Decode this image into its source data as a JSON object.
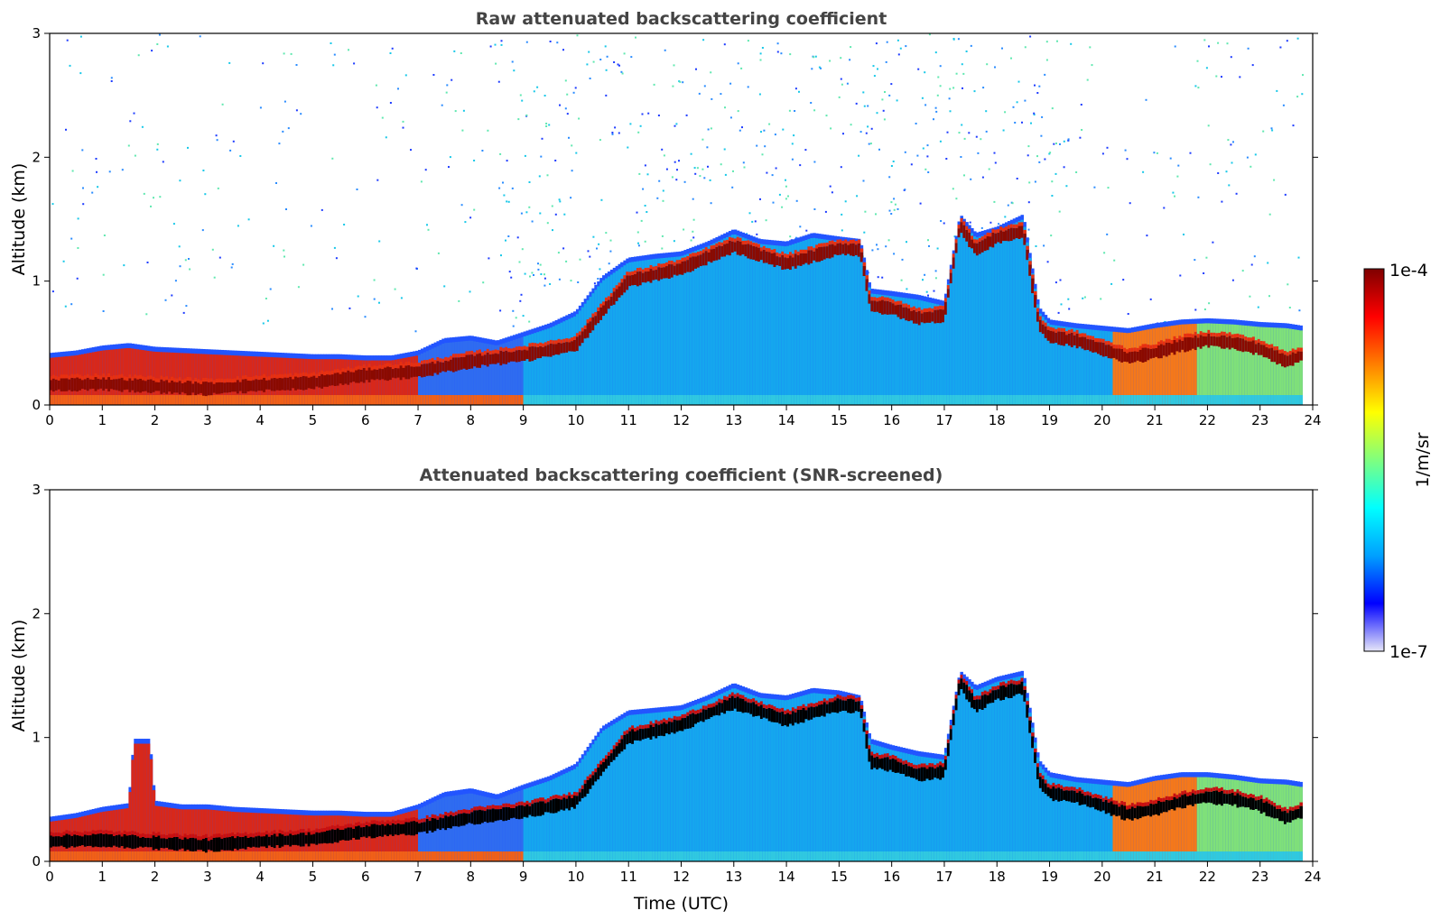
{
  "chart_data": [
    {
      "type": "heatmap",
      "title": "Raw attenuated backscattering coefficient",
      "xlabel": "",
      "ylabel": "Altitude (km)",
      "xlim": [
        0,
        24
      ],
      "ylim": [
        0,
        3
      ],
      "x_ticks": [
        "0",
        "1",
        "2",
        "3",
        "4",
        "5",
        "6",
        "7",
        "8",
        "9",
        "10",
        "11",
        "12",
        "13",
        "14",
        "15",
        "16",
        "17",
        "18",
        "19",
        "20",
        "21",
        "22",
        "23",
        "24"
      ],
      "y_ticks": [
        "0",
        "1",
        "2",
        "3"
      ],
      "screened": false,
      "layer_top_km": [
        [
          0,
          0.38
        ],
        [
          0.5,
          0.4
        ],
        [
          1,
          0.44
        ],
        [
          1.5,
          0.46
        ],
        [
          2,
          0.43
        ],
        [
          2.5,
          0.42
        ],
        [
          3,
          0.41
        ],
        [
          3.5,
          0.4
        ],
        [
          4,
          0.39
        ],
        [
          4.5,
          0.38
        ],
        [
          5,
          0.37
        ],
        [
          5.5,
          0.37
        ],
        [
          6,
          0.36
        ],
        [
          6.5,
          0.36
        ],
        [
          7,
          0.4
        ],
        [
          7.5,
          0.5
        ],
        [
          8,
          0.52
        ],
        [
          8.5,
          0.48
        ],
        [
          9,
          0.55
        ],
        [
          9.5,
          0.62
        ],
        [
          10,
          0.72
        ],
        [
          10.5,
          1.0
        ],
        [
          11,
          1.15
        ],
        [
          11.5,
          1.18
        ],
        [
          12,
          1.2
        ],
        [
          12.5,
          1.28
        ],
        [
          13,
          1.38
        ],
        [
          13.5,
          1.3
        ],
        [
          14,
          1.28
        ],
        [
          14.5,
          1.35
        ],
        [
          15,
          1.32
        ],
        [
          15.4,
          1.3
        ],
        [
          15.6,
          0.9
        ],
        [
          16,
          0.88
        ],
        [
          16.5,
          0.85
        ],
        [
          17,
          0.8
        ],
        [
          17.3,
          1.5
        ],
        [
          17.6,
          1.35
        ],
        [
          18,
          1.4
        ],
        [
          18.5,
          1.5
        ],
        [
          18.8,
          0.75
        ],
        [
          19,
          0.65
        ],
        [
          19.5,
          0.62
        ],
        [
          20,
          0.6
        ],
        [
          20.5,
          0.58
        ],
        [
          21,
          0.62
        ],
        [
          21.5,
          0.65
        ],
        [
          22,
          0.66
        ],
        [
          22.5,
          0.65
        ],
        [
          23,
          0.63
        ],
        [
          23.5,
          0.62
        ],
        [
          23.8,
          0.6
        ]
      ],
      "cloud_base_km": [
        [
          0,
          0.16
        ],
        [
          1,
          0.17
        ],
        [
          2,
          0.15
        ],
        [
          3,
          0.13
        ],
        [
          4,
          0.16
        ],
        [
          5,
          0.18
        ],
        [
          6,
          0.24
        ],
        [
          7,
          0.27
        ],
        [
          8,
          0.35
        ],
        [
          9,
          0.4
        ],
        [
          10,
          0.48
        ],
        [
          10.5,
          0.75
        ],
        [
          11,
          1.0
        ],
        [
          12,
          1.1
        ],
        [
          13,
          1.28
        ],
        [
          14,
          1.14
        ],
        [
          15,
          1.26
        ],
        [
          15.4,
          1.25
        ],
        [
          15.6,
          0.8
        ],
        [
          16,
          0.78
        ],
        [
          16.5,
          0.7
        ],
        [
          17,
          0.72
        ],
        [
          17.3,
          1.45
        ],
        [
          17.6,
          1.25
        ],
        [
          18,
          1.35
        ],
        [
          18.5,
          1.4
        ],
        [
          18.8,
          0.65
        ],
        [
          19,
          0.55
        ],
        [
          19.5,
          0.52
        ],
        [
          20,
          0.45
        ],
        [
          20.5,
          0.38
        ],
        [
          21,
          0.42
        ],
        [
          21.5,
          0.48
        ],
        [
          22,
          0.52
        ],
        [
          22.5,
          0.5
        ],
        [
          23,
          0.45
        ],
        [
          23.5,
          0.35
        ],
        [
          23.8,
          0.4
        ]
      ]
    },
    {
      "type": "heatmap",
      "title": "Attenuated backscattering coefficient (SNR-screened)",
      "xlabel": "Time (UTC)",
      "ylabel": "Altitude (km)",
      "xlim": [
        0,
        24
      ],
      "ylim": [
        0,
        3
      ],
      "x_ticks": [
        "0",
        "1",
        "2",
        "3",
        "4",
        "5",
        "6",
        "7",
        "8",
        "9",
        "10",
        "11",
        "12",
        "13",
        "14",
        "15",
        "16",
        "17",
        "18",
        "19",
        "20",
        "21",
        "22",
        "23",
        "24"
      ],
      "y_ticks": [
        "0",
        "1",
        "2",
        "3"
      ],
      "screened": true,
      "layer_top_km": [
        [
          0,
          0.32
        ],
        [
          0.5,
          0.35
        ],
        [
          1,
          0.4
        ],
        [
          1.5,
          0.43
        ],
        [
          1.6,
          0.95
        ],
        [
          1.9,
          0.95
        ],
        [
          2,
          0.45
        ],
        [
          2.5,
          0.42
        ],
        [
          3,
          0.42
        ],
        [
          3.5,
          0.4
        ],
        [
          4,
          0.39
        ],
        [
          4.5,
          0.38
        ],
        [
          5,
          0.37
        ],
        [
          5.5,
          0.37
        ],
        [
          6,
          0.36
        ],
        [
          6.5,
          0.36
        ],
        [
          7,
          0.42
        ],
        [
          7.5,
          0.52
        ],
        [
          8,
          0.55
        ],
        [
          8.5,
          0.5
        ],
        [
          9,
          0.58
        ],
        [
          9.5,
          0.65
        ],
        [
          10,
          0.75
        ],
        [
          10.5,
          1.05
        ],
        [
          11,
          1.18
        ],
        [
          11.5,
          1.2
        ],
        [
          12,
          1.22
        ],
        [
          12.5,
          1.3
        ],
        [
          13,
          1.4
        ],
        [
          13.5,
          1.32
        ],
        [
          14,
          1.3
        ],
        [
          14.5,
          1.36
        ],
        [
          15,
          1.34
        ],
        [
          15.4,
          1.3
        ],
        [
          15.6,
          0.95
        ],
        [
          16,
          0.9
        ],
        [
          16.5,
          0.85
        ],
        [
          17,
          0.82
        ],
        [
          17.3,
          1.5
        ],
        [
          17.6,
          1.38
        ],
        [
          18,
          1.45
        ],
        [
          18.5,
          1.5
        ],
        [
          18.8,
          0.78
        ],
        [
          19,
          0.68
        ],
        [
          19.5,
          0.64
        ],
        [
          20,
          0.62
        ],
        [
          20.5,
          0.6
        ],
        [
          21,
          0.65
        ],
        [
          21.5,
          0.68
        ],
        [
          22,
          0.68
        ],
        [
          22.5,
          0.66
        ],
        [
          23,
          0.63
        ],
        [
          23.5,
          0.62
        ],
        [
          23.8,
          0.6
        ]
      ],
      "cloud_base_km": [
        [
          0,
          0.16
        ],
        [
          1,
          0.17
        ],
        [
          2,
          0.15
        ],
        [
          3,
          0.13
        ],
        [
          4,
          0.16
        ],
        [
          5,
          0.18
        ],
        [
          6,
          0.24
        ],
        [
          7,
          0.27
        ],
        [
          8,
          0.35
        ],
        [
          9,
          0.4
        ],
        [
          10,
          0.48
        ],
        [
          10.5,
          0.75
        ],
        [
          11,
          1.0
        ],
        [
          12,
          1.1
        ],
        [
          13,
          1.28
        ],
        [
          14,
          1.14
        ],
        [
          15,
          1.26
        ],
        [
          15.4,
          1.25
        ],
        [
          15.6,
          0.8
        ],
        [
          16,
          0.78
        ],
        [
          16.5,
          0.7
        ],
        [
          17,
          0.72
        ],
        [
          17.3,
          1.45
        ],
        [
          17.6,
          1.25
        ],
        [
          18,
          1.35
        ],
        [
          18.5,
          1.4
        ],
        [
          18.8,
          0.65
        ],
        [
          19,
          0.55
        ],
        [
          19.5,
          0.52
        ],
        [
          20,
          0.45
        ],
        [
          20.5,
          0.38
        ],
        [
          21,
          0.42
        ],
        [
          21.5,
          0.48
        ],
        [
          22,
          0.52
        ],
        [
          22.5,
          0.5
        ],
        [
          23,
          0.45
        ],
        [
          23.5,
          0.35
        ],
        [
          23.8,
          0.4
        ]
      ]
    }
  ],
  "colorbar": {
    "max_label": "1e-4",
    "min_label": "1e-7",
    "unit_label": "1/m/sr",
    "colormap": "jet",
    "stops": [
      "#e6e6f8",
      "#0000ff",
      "#00a0ff",
      "#00ffff",
      "#7fff7f",
      "#ffff00",
      "#ff7f00",
      "#ff0000",
      "#7f0000"
    ]
  },
  "colors": {
    "screened_core": "#000000",
    "background": "#ffffff"
  }
}
